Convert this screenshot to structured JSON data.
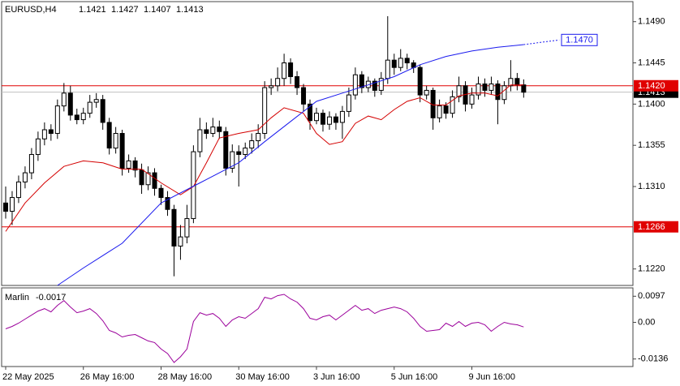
{
  "chart_data": [
    {
      "type": "candlestick",
      "title": "EURUSD,H4",
      "categories": [
        "22 May 2025",
        null,
        null,
        null,
        null,
        null,
        null,
        null,
        null,
        null,
        null,
        null,
        "26 May 16:00",
        null,
        null,
        null,
        null,
        null,
        null,
        null,
        null,
        null,
        null,
        null,
        "28 May 16:00",
        null,
        null,
        null,
        null,
        null,
        null,
        null,
        null,
        null,
        null,
        null,
        "30 May 16:00",
        null,
        null,
        null,
        null,
        null,
        null,
        null,
        null,
        null,
        null,
        null,
        "3 Jun 16:00",
        null,
        null,
        null,
        null,
        null,
        null,
        null,
        null,
        null,
        null,
        null,
        "5 Jun 16:00",
        null,
        null,
        null,
        null,
        null,
        null,
        null,
        null,
        null,
        null,
        null,
        "9 Jun 16:00",
        null,
        null,
        null,
        null,
        null,
        null,
        null,
        null
      ],
      "open": [
        1.1292,
        1.1283,
        1.1298,
        1.1315,
        1.1325,
        1.1345,
        1.1362,
        1.1372,
        1.1368,
        1.1398,
        1.1412,
        1.1388,
        1.1383,
        1.139,
        1.1402,
        1.1405,
        1.138,
        1.1352,
        1.1368,
        1.133,
        1.1338,
        1.1328,
        1.1312,
        1.1325,
        1.1308,
        1.1298,
        1.1285,
        1.1245,
        1.1255,
        1.1275,
        1.1348,
        1.1372,
        1.1368,
        1.1375,
        1.137,
        1.133,
        1.1348,
        1.1345,
        1.1352,
        1.136,
        1.1368,
        1.1418,
        1.142,
        1.1428,
        1.1445,
        1.143,
        1.1418,
        1.14,
        1.1382,
        1.139,
        1.1378,
        1.1386,
        1.138,
        1.1392,
        1.141,
        1.1432,
        1.1418,
        1.1425,
        1.1415,
        1.1428,
        1.1448,
        1.144,
        1.145,
        1.1445,
        1.144,
        1.141,
        1.1415,
        1.1385,
        1.1398,
        1.139,
        1.1408,
        1.142,
        1.14,
        1.141,
        1.1422,
        1.1415,
        1.1422,
        1.1405,
        1.142,
        1.1428,
        1.1421
      ],
      "high": [
        1.131,
        1.1305,
        1.1322,
        1.1332,
        1.1352,
        1.137,
        1.138,
        1.1378,
        1.1405,
        1.1423,
        1.142,
        1.1395,
        1.1396,
        1.141,
        1.1412,
        1.141,
        1.1385,
        1.1375,
        1.1372,
        1.1345,
        1.1342,
        1.1335,
        1.1332,
        1.133,
        1.1312,
        1.1305,
        1.129,
        1.1268,
        1.129,
        1.1355,
        1.1385,
        1.138,
        1.1385,
        1.1382,
        1.1375,
        1.1356,
        1.1355,
        1.1358,
        1.1368,
        1.1378,
        1.1425,
        1.1428,
        1.144,
        1.1455,
        1.145,
        1.1436,
        1.1422,
        1.1405,
        1.1396,
        1.1394,
        1.1392,
        1.139,
        1.1398,
        1.1418,
        1.144,
        1.1436,
        1.143,
        1.1428,
        1.1435,
        1.1496,
        1.1455,
        1.146,
        1.1455,
        1.1448,
        1.1443,
        1.142,
        1.1418,
        1.1405,
        1.1402,
        1.1415,
        1.143,
        1.1425,
        1.1418,
        1.143,
        1.1428,
        1.143,
        1.1426,
        1.1425,
        1.1448,
        1.1434,
        1.1427
      ],
      "low": [
        1.1275,
        1.1268,
        1.1292,
        1.1308,
        1.1318,
        1.1338,
        1.1355,
        1.136,
        1.1362,
        1.1392,
        1.1382,
        1.1378,
        1.1378,
        1.1385,
        1.1396,
        1.1372,
        1.1345,
        1.1346,
        1.1322,
        1.1325,
        1.132,
        1.1302,
        1.1306,
        1.13,
        1.129,
        1.1278,
        1.1212,
        1.123,
        1.1248,
        1.127,
        1.1342,
        1.1362,
        1.1364,
        1.1362,
        1.1322,
        1.1325,
        1.131,
        1.134,
        1.1346,
        1.1352,
        1.1362,
        1.141,
        1.1414,
        1.142,
        1.1422,
        1.141,
        1.1392,
        1.1372,
        1.1378,
        1.137,
        1.1372,
        1.1372,
        1.1362,
        1.1386,
        1.1405,
        1.1412,
        1.1413,
        1.1408,
        1.141,
        1.1422,
        1.1432,
        1.1436,
        1.1438,
        1.1434,
        1.1402,
        1.1405,
        1.1372,
        1.138,
        1.1384,
        1.1385,
        1.1402,
        1.1392,
        1.1395,
        1.1405,
        1.1408,
        1.141,
        1.1378,
        1.14,
        1.1414,
        1.1415,
        1.1407
      ],
      "close": [
        1.1283,
        1.1298,
        1.1315,
        1.1325,
        1.1345,
        1.1362,
        1.1372,
        1.1368,
        1.1398,
        1.1412,
        1.1388,
        1.1383,
        1.139,
        1.1402,
        1.1405,
        1.138,
        1.1352,
        1.1368,
        1.133,
        1.1338,
        1.1328,
        1.1312,
        1.1325,
        1.1308,
        1.1298,
        1.1285,
        1.1245,
        1.1255,
        1.1275,
        1.1348,
        1.1372,
        1.1368,
        1.1375,
        1.137,
        1.133,
        1.1348,
        1.1345,
        1.1352,
        1.136,
        1.1368,
        1.1418,
        1.142,
        1.1428,
        1.1445,
        1.143,
        1.1418,
        1.14,
        1.1382,
        1.139,
        1.1378,
        1.1386,
        1.138,
        1.1392,
        1.141,
        1.1432,
        1.1418,
        1.1425,
        1.1415,
        1.1428,
        1.1448,
        1.144,
        1.145,
        1.1445,
        1.144,
        1.141,
        1.1415,
        1.1385,
        1.1398,
        1.139,
        1.1408,
        1.142,
        1.14,
        1.141,
        1.1422,
        1.1415,
        1.1422,
        1.1405,
        1.142,
        1.1428,
        1.1421,
        1.1413
      ],
      "up_color": "#ffffff",
      "down_color": "#000000",
      "series": [
        {
          "color": "#d40000",
          "x": [
            0,
            3,
            6,
            9,
            12,
            15,
            18,
            21,
            24,
            27,
            29,
            31,
            33,
            36,
            39,
            41,
            43,
            46,
            48,
            50,
            52,
            54,
            56,
            58,
            60,
            62,
            64,
            66,
            68,
            70,
            72,
            74,
            76,
            78,
            80
          ],
          "values": [
            1.1261,
            1.1292,
            1.1314,
            1.1332,
            1.1338,
            1.1336,
            1.1329,
            1.1329,
            1.1314,
            1.1301,
            1.131,
            1.1336,
            1.1363,
            1.1368,
            1.1372,
            1.1385,
            1.1396,
            1.139,
            1.1368,
            1.1356,
            1.1359,
            1.1379,
            1.1387,
            1.1383,
            1.1394,
            1.1403,
            1.1407,
            1.1399,
            1.1399,
            1.1409,
            1.1412,
            1.1412,
            1.1409,
            1.1421,
            1.1421
          ]
        },
        {
          "color": "#1a1aee",
          "x": [
            8,
            12,
            18,
            24,
            30,
            36,
            40,
            44,
            48,
            52,
            56,
            60,
            64,
            68,
            72,
            76,
            80
          ],
          "values": [
            1.1202,
            1.1221,
            1.1248,
            1.1292,
            1.1314,
            1.1336,
            1.1359,
            1.1381,
            1.1403,
            1.1412,
            1.1421,
            1.143,
            1.1443,
            1.1452,
            1.1458,
            1.1462,
            1.1465
          ]
        },
        {
          "color": "#1a1aee",
          "dash": true,
          "x": [
            80,
            85.5
          ],
          "values": [
            1.1465,
            1.147
          ]
        }
      ],
      "xlim": [
        -0.625,
        96.875
      ],
      "ylim": [
        1.1202,
        1.1511
      ],
      "yticks": [
        {
          "value": 1.149,
          "label": "1.1490"
        },
        1.1445,
        {
          "value": 1.14,
          "label": "1.1400"
        },
        1.1355,
        {
          "value": 1.131,
          "label": "1.1310"
        },
        {
          "value": 1.122,
          "label": "1.1220"
        }
      ],
      "hlines": [
        {
          "value": 1.142,
          "label": "1.1420",
          "color": "#e00000"
        },
        {
          "value": 1.1266,
          "color": "#e00000"
        }
      ],
      "annotation": {
        "value": 1.147,
        "label": "1.1470",
        "color": "#1a1aee"
      }
    },
    {
      "type": "line",
      "title": "Marlin",
      "series": [
        {
          "color": "#9b009b",
          "values": [
            -0.0024,
            -0.0015,
            -0.0003,
            0.0012,
            0.0027,
            0.0042,
            0.0051,
            0.0039,
            0.0063,
            0.0081,
            0.0057,
            0.0036,
            0.0042,
            0.0051,
            0.0033,
            0.0006,
            -0.003,
            -0.0039,
            -0.0054,
            -0.0048,
            -0.0045,
            -0.0057,
            -0.0069,
            -0.0075,
            -0.0099,
            -0.0116,
            -0.0149,
            -0.0128,
            -0.0099,
            0.0003,
            0.0036,
            0.0027,
            0.0033,
            0.0015,
            -0.0015,
            0.0009,
            0.0021,
            0.0015,
            0.0033,
            0.0051,
            0.0093,
            0.0087,
            0.0099,
            0.0104,
            0.0087,
            0.0075,
            0.0051,
            0.0015,
            0.0009,
            0.0021,
            0.0027,
            0.0009,
            0.0027,
            0.0045,
            0.0063,
            0.0045,
            0.0051,
            0.0033,
            0.0045,
            0.0051,
            0.0057,
            0.0051,
            0.0039,
            0.0015,
            -0.0015,
            -0.0033,
            -0.003,
            -0.0027,
            -0.0003,
            -0.0015,
            0.0003,
            -0.0015,
            -0.0003,
            0.0,
            -0.0009,
            -0.0033,
            -0.0015,
            0.0,
            -0.0006,
            -0.0009,
            -0.0017
          ]
        }
      ],
      "ylim": [
        -0.0158,
        0.0125
      ],
      "yticks": [
        0.0097,
        {
          "value": 0,
          "label": "0.00"
        },
        -0.0136
      ]
    }
  ]
}
